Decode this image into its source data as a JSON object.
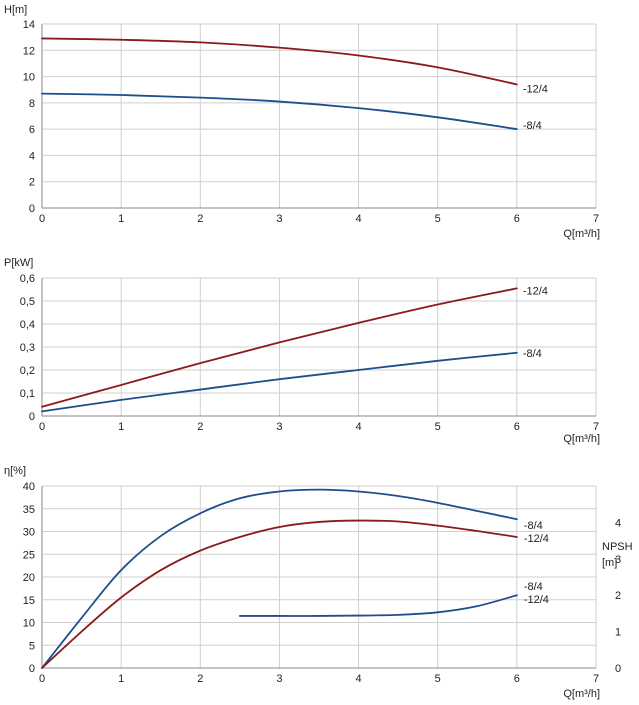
{
  "chart_data": [
    {
      "type": "line",
      "ylabel": "H[m]",
      "xlabel": "Q[m³/h]",
      "xlim": [
        0,
        7
      ],
      "ylim": [
        0,
        14
      ],
      "xticks": [
        "0",
        "1",
        "2",
        "3",
        "4",
        "5",
        "6",
        "7"
      ],
      "yticks": [
        "0",
        "2",
        "4",
        "6",
        "8",
        "10",
        "12",
        "14"
      ],
      "grid": true,
      "series": [
        {
          "name": "-12/4",
          "color": "#8b1a1a",
          "x": [
            0,
            1,
            2,
            3,
            4,
            5,
            6
          ],
          "y": [
            12.9,
            12.8,
            12.6,
            12.2,
            11.6,
            10.7,
            9.4
          ]
        },
        {
          "name": "-8/4",
          "color": "#1f4e8c",
          "x": [
            0,
            1,
            2,
            3,
            4,
            5,
            6
          ],
          "y": [
            8.7,
            8.6,
            8.4,
            8.1,
            7.6,
            6.9,
            6.0
          ]
        }
      ]
    },
    {
      "type": "line",
      "ylabel": "P[kW]",
      "xlabel": "Q[m³/h]",
      "xlim": [
        0,
        7
      ],
      "ylim": [
        0,
        0.6
      ],
      "xticks": [
        "0",
        "1",
        "2",
        "3",
        "4",
        "5",
        "6",
        "7"
      ],
      "yticks": [
        "0",
        "0,1",
        "0,2",
        "0,3",
        "0,4",
        "0,5",
        "0,6"
      ],
      "grid": true,
      "series": [
        {
          "name": "-12/4",
          "color": "#8b1a1a",
          "x": [
            0,
            1,
            2,
            3,
            4,
            5,
            6
          ],
          "y": [
            0.04,
            0.135,
            0.23,
            0.32,
            0.405,
            0.485,
            0.555
          ]
        },
        {
          "name": "-8/4",
          "color": "#1f4e8c",
          "x": [
            0,
            1,
            2,
            3,
            4,
            5,
            6
          ],
          "y": [
            0.02,
            0.07,
            0.115,
            0.16,
            0.2,
            0.24,
            0.275
          ]
        }
      ]
    },
    {
      "type": "line",
      "ylabel": "η[%]",
      "y2label": [
        "NPSH",
        "[m]"
      ],
      "xlabel": "Q[m³/h]",
      "xlim": [
        0,
        7
      ],
      "ylim": [
        0,
        40
      ],
      "y2lim": [
        0,
        5
      ],
      "xticks": [
        "0",
        "1",
        "2",
        "3",
        "4",
        "5",
        "6",
        "7"
      ],
      "yticks": [
        "0",
        "5",
        "10",
        "15",
        "20",
        "25",
        "30",
        "35",
        "40"
      ],
      "y2ticks": [
        "0",
        "1",
        "2",
        "3",
        "4"
      ],
      "grid": true,
      "series": [
        {
          "name": "-8/4",
          "color": "#1f4e8c",
          "x": [
            0,
            0.5,
            1,
            1.5,
            2,
            2.5,
            3,
            3.5,
            4,
            4.5,
            5,
            5.5,
            6
          ],
          "y": [
            0,
            11,
            21.5,
            29,
            34,
            37.3,
            38.8,
            39.2,
            38.8,
            37.8,
            36.3,
            34.5,
            32.7
          ]
        },
        {
          "name": "-12/4",
          "color": "#8b1a1a",
          "x": [
            0,
            0.5,
            1,
            1.5,
            2,
            2.5,
            3,
            3.5,
            4,
            4.5,
            5,
            5.5,
            6
          ],
          "y": [
            0,
            8,
            15.5,
            21.5,
            25.8,
            28.8,
            31,
            32.1,
            32.4,
            32.2,
            31.3,
            30.1,
            28.8
          ]
        },
        {
          "name": "-8/4, -12/4",
          "label_lines": [
            "-8/4",
            "-12/4"
          ],
          "color": "#1f4e8c",
          "axis": "y2",
          "x": [
            2.5,
            3,
            3.5,
            4,
            4.5,
            5,
            5.5,
            6
          ],
          "y": [
            1.43,
            1.43,
            1.43,
            1.44,
            1.46,
            1.53,
            1.7,
            2.0
          ]
        }
      ]
    }
  ]
}
